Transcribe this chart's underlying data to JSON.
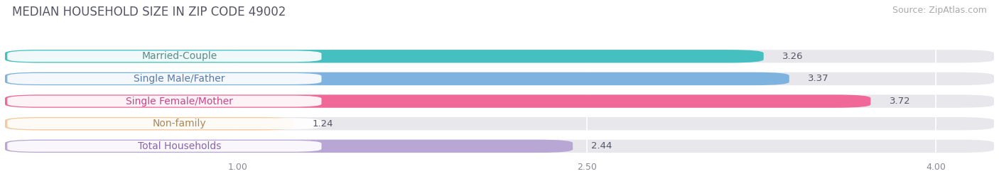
{
  "title": "MEDIAN HOUSEHOLD SIZE IN ZIP CODE 49002",
  "source": "Source: ZipAtlas.com",
  "categories": [
    "Married-Couple",
    "Single Male/Father",
    "Single Female/Mother",
    "Non-family",
    "Total Households"
  ],
  "values": [
    3.26,
    3.37,
    3.72,
    1.24,
    2.44
  ],
  "bar_colors": [
    "#45BFBF",
    "#7EB3E0",
    "#F06898",
    "#F5C99A",
    "#B8A7D4"
  ],
  "label_text_colors": [
    "#5a8a8a",
    "#5a7aaa",
    "#cc4488",
    "#aa8855",
    "#8866aa"
  ],
  "xmin": 0.0,
  "xmax": 4.25,
  "xticks": [
    1.0,
    2.5,
    4.0
  ],
  "title_fontsize": 12,
  "source_fontsize": 9,
  "label_fontsize": 10,
  "value_fontsize": 9.5,
  "background_color": "#ffffff",
  "bar_background_color": "#e8e8ec"
}
